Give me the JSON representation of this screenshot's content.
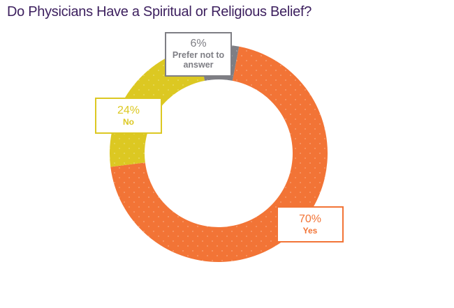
{
  "title": "Do Physicians Have a Spiritual or Religious Belief?",
  "chart_data": {
    "type": "pie",
    "donut": true,
    "title": "Do Physicians Have a Spiritual or Religious Belief?",
    "slices": [
      {
        "label": "Yes",
        "value": 70,
        "display": "70%",
        "color": "#f27436"
      },
      {
        "label": "No",
        "value": 24,
        "display": "24%",
        "color": "#dcc822"
      },
      {
        "label": "Prefer not to answer",
        "value": 6,
        "display": "6%",
        "color": "#7e7e84"
      }
    ],
    "legend": "callouts"
  }
}
